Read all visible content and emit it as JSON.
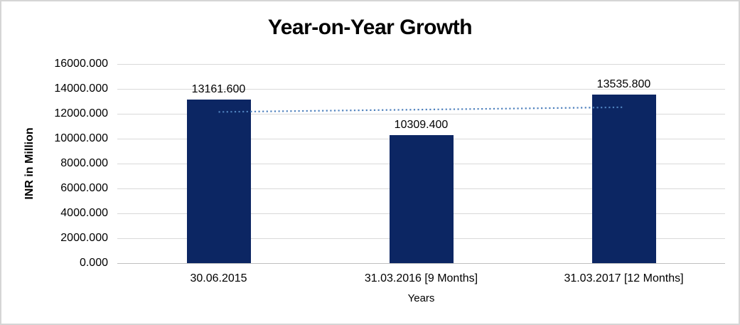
{
  "frame": {
    "background": "#ffffff",
    "border_color": "#d5d5d5"
  },
  "chart_data": {
    "type": "bar",
    "title": "Year-on-Year Growth",
    "xlabel": "Years",
    "ylabel": "INR in Million",
    "categories": [
      "30.06.2015",
      "31.03.2016 [9 Months]",
      "31.03.2017 [12 Months]"
    ],
    "values": [
      13161.6,
      10309.4,
      13535.8
    ],
    "data_labels": [
      "13161.600",
      "10309.400",
      "13535.800"
    ],
    "ylim": [
      0,
      16000
    ],
    "ytick_interval": 2000,
    "ytick_labels": [
      "0.000",
      "2000.000",
      "4000.000",
      "6000.000",
      "8000.000",
      "10000.000",
      "12000.000",
      "14000.000",
      "16000.000"
    ],
    "grid": true,
    "legend": "none",
    "bar_color": "#0c2663",
    "gridline_color": "#d9d9d9",
    "axisline_color": "#bfbfbf",
    "trendline": {
      "type": "linear",
      "style": "dotted",
      "color": "#4f81bd",
      "start_value": 12148,
      "end_value": 12523
    }
  }
}
